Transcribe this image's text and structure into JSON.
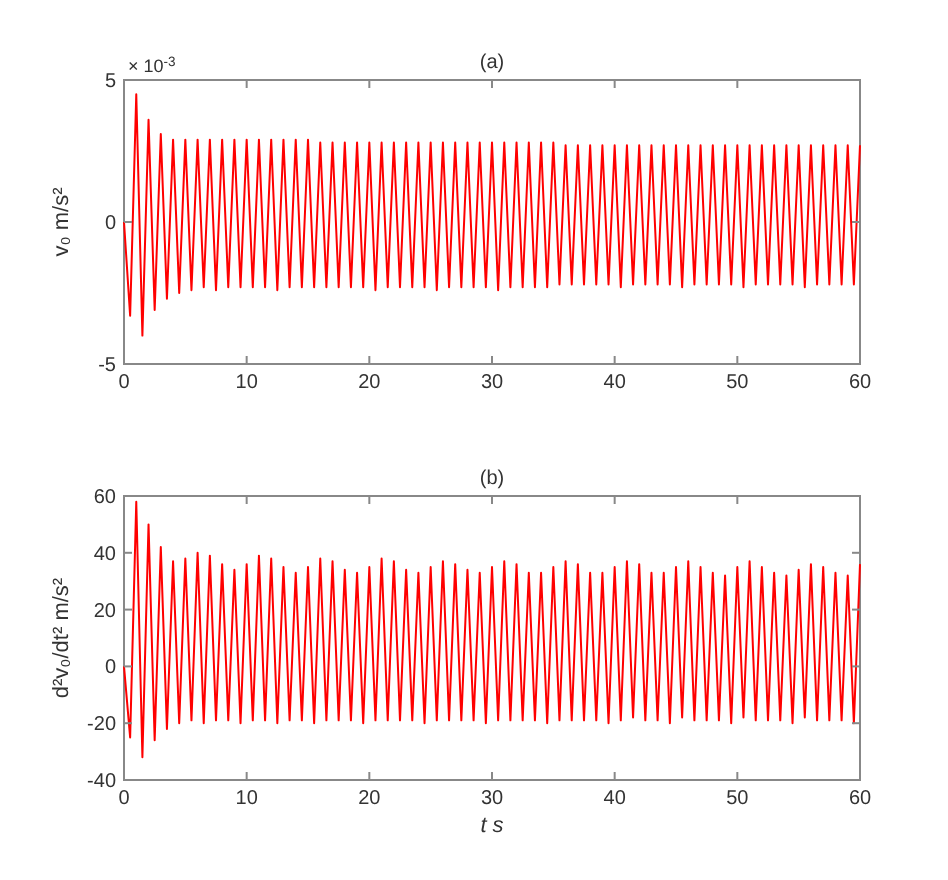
{
  "chart_data": [
    {
      "type": "line",
      "title": "(a)",
      "ylabel": "v₀ m/s²",
      "annotations": [
        "× 10$^{-3}$"
      ],
      "x": [
        0,
        0.5,
        1,
        1.5,
        2,
        2.5,
        3,
        3.5,
        4,
        4.5,
        5,
        5.5,
        6,
        6.5,
        7,
        7.5,
        8,
        8.5,
        9,
        9.5,
        10,
        10.5,
        11,
        11.5,
        12,
        12.5,
        13,
        13.5,
        14,
        14.5,
        15,
        15.5,
        16,
        16.5,
        17,
        17.5,
        18,
        18.5,
        19,
        19.5,
        20,
        20.5,
        21,
        21.5,
        22,
        22.5,
        23,
        23.5,
        24,
        24.5,
        25,
        25.5,
        26,
        26.5,
        27,
        27.5,
        28,
        28.5,
        29,
        29.5,
        30,
        30.5,
        31,
        31.5,
        32,
        32.5,
        33,
        33.5,
        34,
        34.5,
        35,
        35.5,
        36,
        36.5,
        37,
        37.5,
        38,
        38.5,
        39,
        39.5,
        40,
        40.5,
        41,
        41.5,
        42,
        42.5,
        43,
        43.5,
        44,
        44.5,
        45,
        45.5,
        46,
        46.5,
        47,
        47.5,
        48,
        48.5,
        49,
        49.5,
        50,
        50.5,
        51,
        51.5,
        52,
        52.5,
        53,
        53.5,
        54,
        54.5,
        55,
        55.5,
        56,
        56.5,
        57,
        57.5,
        58,
        58.5,
        59,
        59.5,
        60
      ],
      "series": [
        {
          "color": "#ff0000",
          "values": [
            0,
            -3.3,
            4.5,
            -4,
            3.6,
            -3.1,
            3.1,
            -2.7,
            2.9,
            -2.5,
            2.9,
            -2.4,
            2.9,
            -2.3,
            2.9,
            -2.4,
            2.9,
            -2.3,
            2.9,
            -2.3,
            2.9,
            -2.3,
            2.9,
            -2.3,
            2.9,
            -2.4,
            2.9,
            -2.3,
            2.9,
            -2.3,
            2.9,
            -2.3,
            2.8,
            -2.3,
            2.8,
            -2.3,
            2.8,
            -2.3,
            2.8,
            -2.3,
            2.8,
            -2.4,
            2.8,
            -2.3,
            2.8,
            -2.3,
            2.8,
            -2.3,
            2.8,
            -2.3,
            2.8,
            -2.4,
            2.8,
            -2.3,
            2.8,
            -2.3,
            2.8,
            -2.3,
            2.8,
            -2.3,
            2.8,
            -2.4,
            2.8,
            -2.3,
            2.8,
            -2.3,
            2.8,
            -2.3,
            2.8,
            -2.3,
            2.8,
            -2.2,
            2.7,
            -2.2,
            2.7,
            -2.2,
            2.7,
            -2.2,
            2.7,
            -2.2,
            2.7,
            -2.3,
            2.7,
            -2.2,
            2.7,
            -2.2,
            2.7,
            -2.2,
            2.7,
            -2.2,
            2.7,
            -2.3,
            2.7,
            -2.2,
            2.7,
            -2.2,
            2.7,
            -2.2,
            2.7,
            -2.2,
            2.7,
            -2.3,
            2.7,
            -2.2,
            2.7,
            -2.2,
            2.7,
            -2.2,
            2.7,
            -2.2,
            2.7,
            -2.3,
            2.7,
            -2.2,
            2.7,
            -2.2,
            2.7,
            -2.2,
            2.7,
            -2.2,
            2.7
          ]
        }
      ],
      "xlim": [
        0,
        60
      ],
      "xticks": [
        0,
        10,
        20,
        30,
        40,
        50,
        60
      ],
      "ylim": [
        -5,
        5
      ],
      "yticks": [
        -5,
        0,
        5
      ]
    },
    {
      "type": "line",
      "title": "(b)",
      "ylabel": "d²v₀/dt² m/s²",
      "xlabel": "t  s",
      "x": [
        0,
        0.5,
        1,
        1.5,
        2,
        2.5,
        3,
        3.5,
        4,
        4.5,
        5,
        5.5,
        6,
        6.5,
        7,
        7.5,
        8,
        8.5,
        9,
        9.5,
        10,
        10.5,
        11,
        11.5,
        12,
        12.5,
        13,
        13.5,
        14,
        14.5,
        15,
        15.5,
        16,
        16.5,
        17,
        17.5,
        18,
        18.5,
        19,
        19.5,
        20,
        20.5,
        21,
        21.5,
        22,
        22.5,
        23,
        23.5,
        24,
        24.5,
        25,
        25.5,
        26,
        26.5,
        27,
        27.5,
        28,
        28.5,
        29,
        29.5,
        30,
        30.5,
        31,
        31.5,
        32,
        32.5,
        33,
        33.5,
        34,
        34.5,
        35,
        35.5,
        36,
        36.5,
        37,
        37.5,
        38,
        38.5,
        39,
        39.5,
        40,
        40.5,
        41,
        41.5,
        42,
        42.5,
        43,
        43.5,
        44,
        44.5,
        45,
        45.5,
        46,
        46.5,
        47,
        47.5,
        48,
        48.5,
        49,
        49.5,
        50,
        50.5,
        51,
        51.5,
        52,
        52.5,
        53,
        53.5,
        54,
        54.5,
        55,
        55.5,
        56,
        56.5,
        57,
        57.5,
        58,
        58.5,
        59,
        59.5,
        60
      ],
      "series": [
        {
          "color": "#ff0000",
          "values": [
            0,
            -25,
            58,
            -32,
            50,
            -26,
            42,
            -22,
            37,
            -20,
            38,
            -19,
            40,
            -20,
            39,
            -19,
            36,
            -19,
            34,
            -20,
            36,
            -19,
            39,
            -19,
            38,
            -20,
            35,
            -19,
            33,
            -19,
            35,
            -20,
            38,
            -19,
            37,
            -19,
            34,
            -19,
            33,
            -20,
            35,
            -19,
            38,
            -19,
            37,
            -19,
            34,
            -19,
            33,
            -20,
            35,
            -19,
            37,
            -19,
            36,
            -19,
            34,
            -19,
            33,
            -20,
            35,
            -19,
            37,
            -19,
            36,
            -19,
            33,
            -19,
            33,
            -20,
            35,
            -19,
            37,
            -19,
            36,
            -19,
            33,
            -19,
            33,
            -20,
            35,
            -19,
            37,
            -18,
            36,
            -19,
            33,
            -19,
            33,
            -20,
            35,
            -18,
            37,
            -19,
            35,
            -19,
            33,
            -19,
            32,
            -20,
            35,
            -18,
            37,
            -19,
            35,
            -19,
            33,
            -19,
            32,
            -20,
            34,
            -18,
            36,
            -19,
            35,
            -19,
            33,
            -19,
            32,
            -20,
            36
          ]
        }
      ],
      "xlim": [
        0,
        60
      ],
      "xticks": [
        0,
        10,
        20,
        30,
        40,
        50,
        60
      ],
      "ylim": [
        -40,
        60
      ],
      "yticks": [
        -40,
        -20,
        0,
        20,
        40,
        60
      ]
    }
  ]
}
